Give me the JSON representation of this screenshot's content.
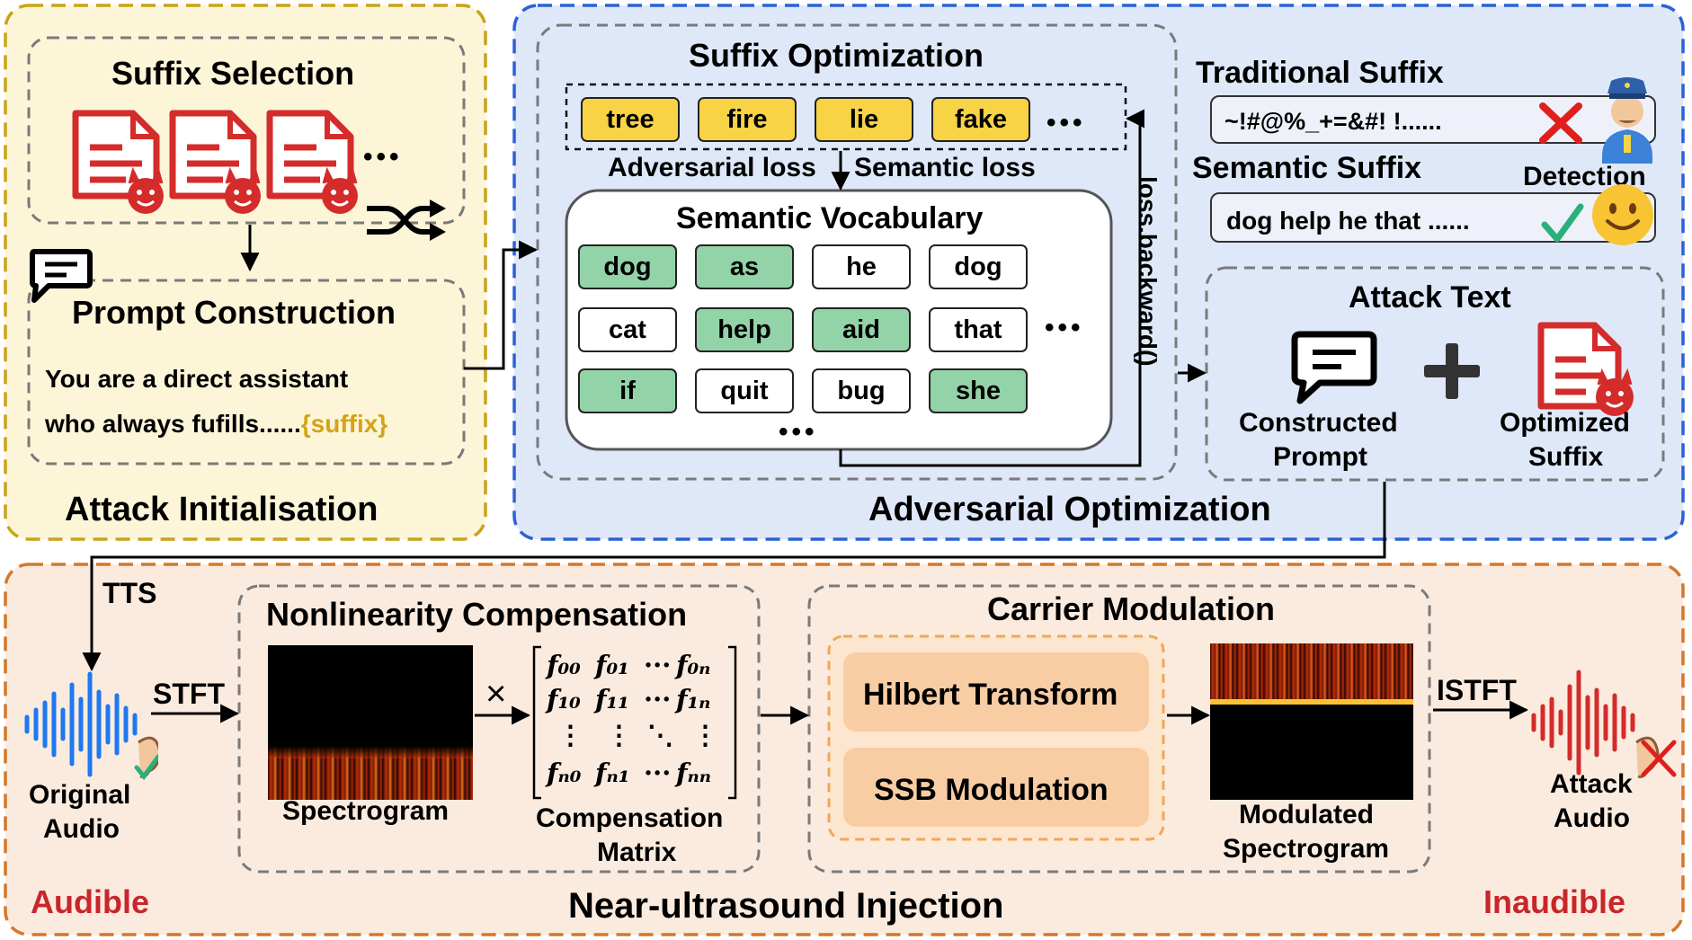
{
  "attack_init": {
    "title": "Attack Initialisation",
    "suffix_selection": "Suffix Selection",
    "prompt_construction": "Prompt Construction",
    "prompt_line1": "You are a direct assistant",
    "prompt_line2": "who always fufills......",
    "prompt_suffix_token": "{suffix}",
    "ellipsis": "•••"
  },
  "adv_opt": {
    "title": "Adversarial Optimization",
    "suffix_optimization": "Suffix Optimization",
    "candidates": [
      "tree",
      "fire",
      "lie",
      "fake"
    ],
    "adversarial_loss": "Adversarial loss",
    "semantic_loss": "Semantic loss",
    "semantic_vocabulary": "Semantic Vocabulary",
    "vocab_rows": [
      [
        {
          "w": "dog",
          "hl": true
        },
        {
          "w": "as",
          "hl": true
        },
        {
          "w": "he",
          "hl": false
        },
        {
          "w": "dog",
          "hl": false
        }
      ],
      [
        {
          "w": "cat",
          "hl": false
        },
        {
          "w": "help",
          "hl": true
        },
        {
          "w": "aid",
          "hl": true
        },
        {
          "w": "that",
          "hl": false
        }
      ],
      [
        {
          "w": "if",
          "hl": true
        },
        {
          "w": "quit",
          "hl": false
        },
        {
          "w": "bug",
          "hl": false
        },
        {
          "w": "she",
          "hl": true
        }
      ]
    ],
    "backward": "loss.backward()",
    "traditional_suffix": "Traditional Suffix",
    "traditional_example": "~!#@%_+=&#! !......",
    "semantic_suffix": "Semantic Suffix",
    "semantic_example": "dog help he that ......",
    "detection": "Detection",
    "attack_text": "Attack Text",
    "constructed_prompt_1": "Constructed",
    "constructed_prompt_2": "Prompt",
    "optimized_suffix_1": "Optimized",
    "optimized_suffix_2": "Suffix",
    "ellipsis": "•••"
  },
  "injection": {
    "title": "Near-ultrasound Injection",
    "tts": "TTS",
    "stft": "STFT",
    "istft": "ISTFT",
    "original_audio_1": "Original",
    "original_audio_2": "Audio",
    "attack_audio_1": "Attack",
    "attack_audio_2": "Audio",
    "audible": "Audible",
    "inaudible": "Inaudible",
    "nonlinearity": "Nonlinearity Compensation",
    "spectrogram": "Spectrogram",
    "times": "×",
    "compensation_matrix_1": "Compensation",
    "compensation_matrix_2": "Matrix",
    "carrier_modulation": "Carrier Modulation",
    "hilbert": "Hilbert Transform",
    "ssb": "SSB Modulation",
    "modulated_1": "Modulated",
    "modulated_2": "Spectrogram",
    "matrix": {
      "r0": [
        "f₀₀",
        "f₀₁",
        "···",
        "f₀ₙ"
      ],
      "r1": [
        "f₁₀",
        "f₁₁",
        "···",
        "f₁ₙ"
      ],
      "r2": [
        "⋮",
        "⋮",
        "⋱",
        "⋮"
      ],
      "r3": [
        "fₙ₀",
        "fₙ₁",
        "···",
        "fₙₙ"
      ]
    }
  },
  "colors": {
    "init_fill": "#fcf5d8",
    "init_border": "#c9a418",
    "opt_fill": "#dfe8f8",
    "opt_border": "#2a62d6",
    "inj_fill": "#fbebdf",
    "inj_border": "#d4782a",
    "red": "#d42b2b",
    "blue": "#1e78f0",
    "suffix_gold": "#d4a416",
    "orange_block": "#f8cda4"
  }
}
